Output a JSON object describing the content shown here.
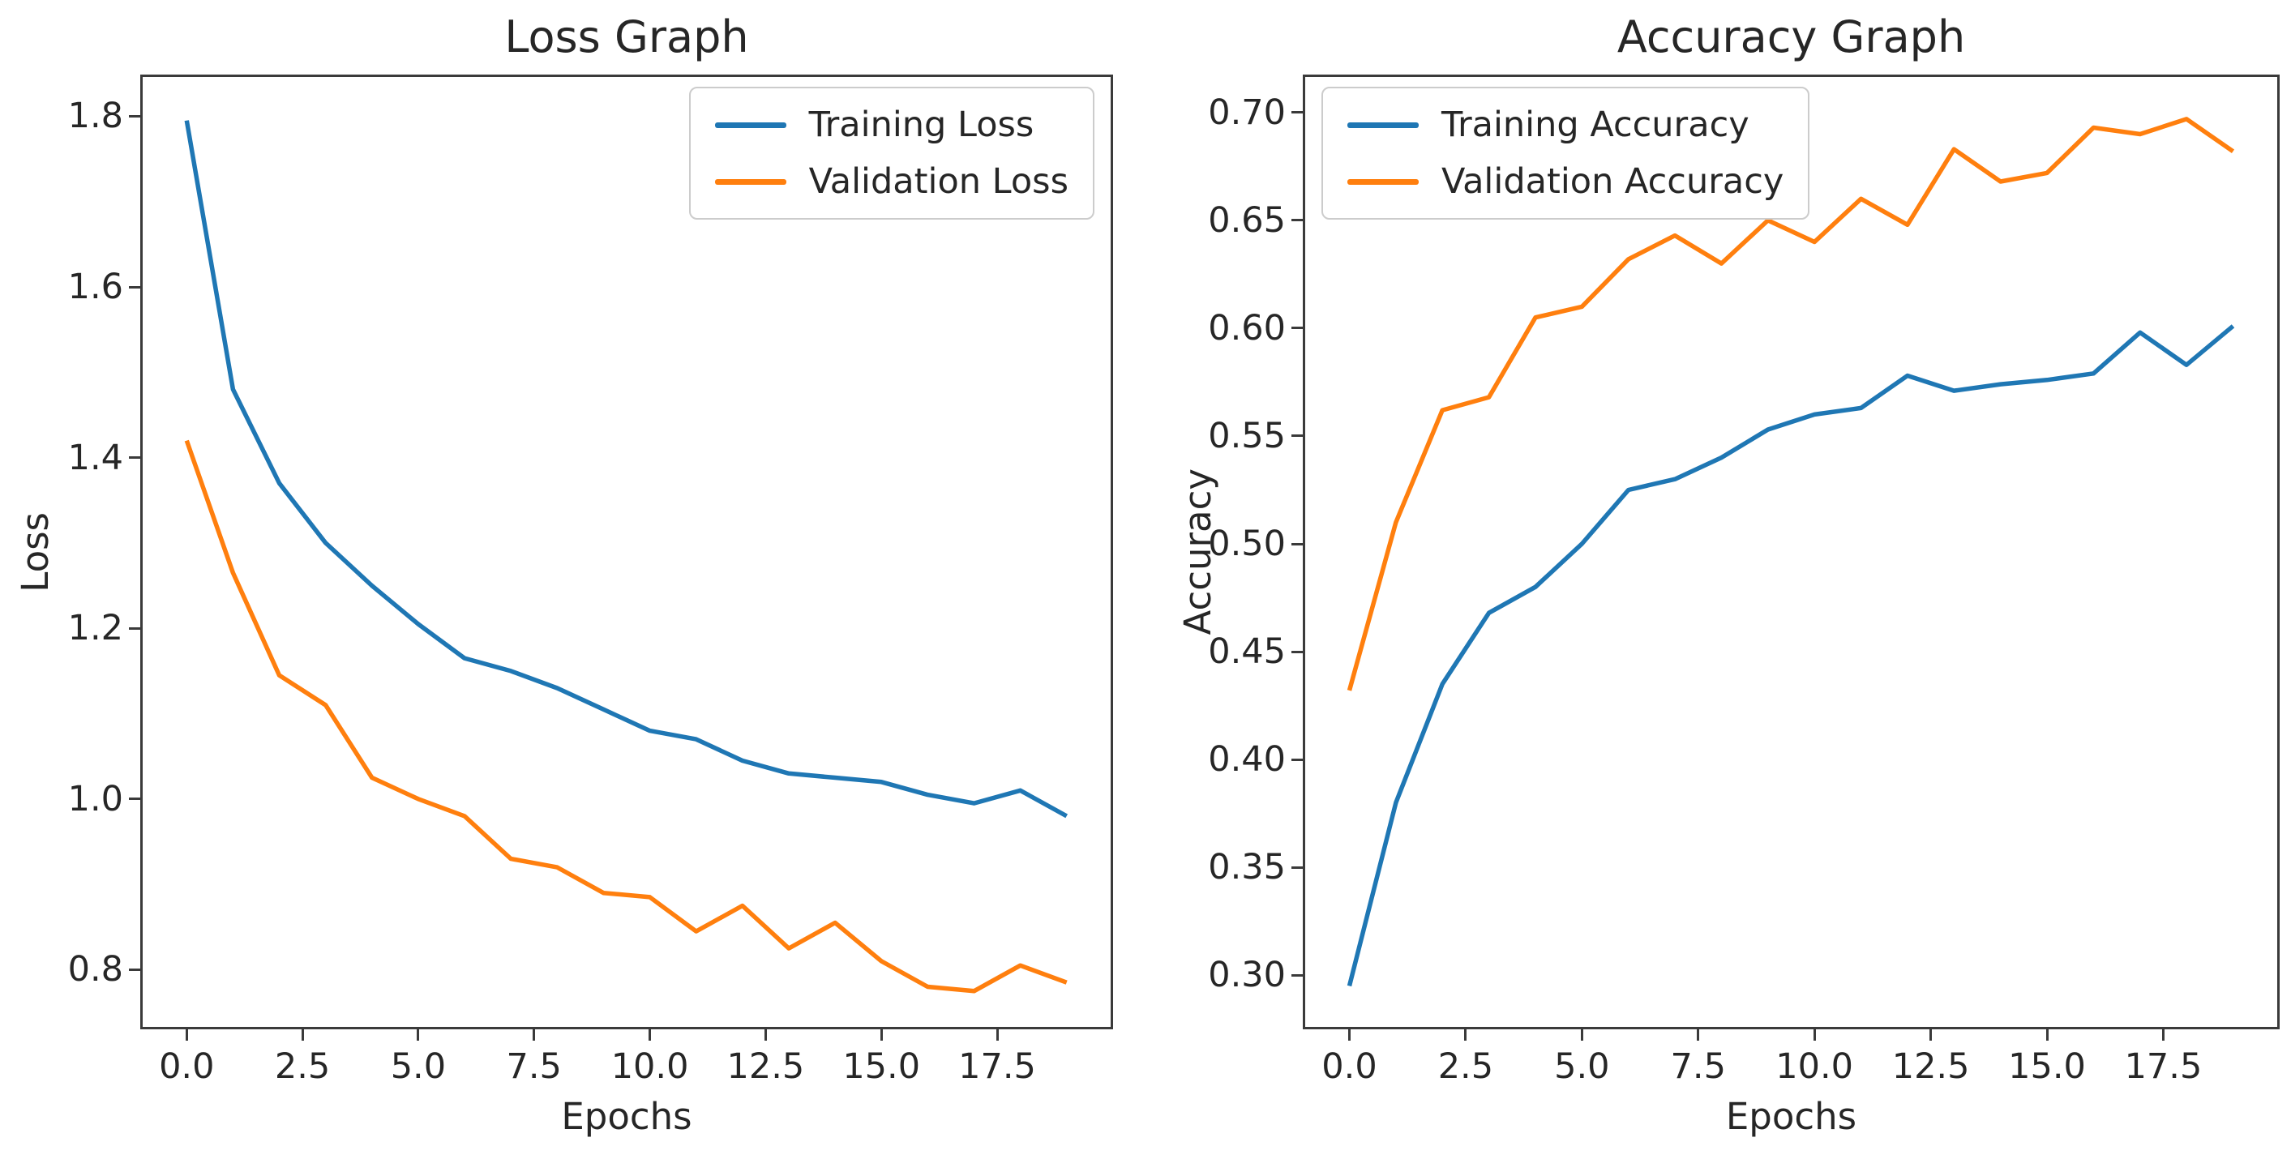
{
  "figure": {
    "background": "#ffffff",
    "text_color": "#262626",
    "axis_color": "#3a3a3a",
    "legend_border_color": "#cccccc"
  },
  "chart_data": [
    {
      "type": "line",
      "title": "Loss Graph",
      "xlabel": "Epochs",
      "ylabel": "Loss",
      "x": [
        0,
        1,
        2,
        3,
        4,
        5,
        6,
        7,
        8,
        9,
        10,
        11,
        12,
        13,
        14,
        15,
        16,
        17,
        18,
        19
      ],
      "series": [
        {
          "name": "Training Loss",
          "color": "#1f77b4",
          "values": [
            1.795,
            1.48,
            1.37,
            1.3,
            1.25,
            1.205,
            1.165,
            1.15,
            1.13,
            1.105,
            1.08,
            1.07,
            1.045,
            1.03,
            1.025,
            1.02,
            1.005,
            0.995,
            1.01,
            0.98
          ]
        },
        {
          "name": "Validation Loss",
          "color": "#ff7f0e",
          "values": [
            1.42,
            1.265,
            1.145,
            1.11,
            1.025,
            1.0,
            0.98,
            0.93,
            0.92,
            0.89,
            0.885,
            0.845,
            0.875,
            0.825,
            0.855,
            0.81,
            0.78,
            0.775,
            0.805,
            0.785
          ]
        }
      ],
      "xlim": [
        -0.95,
        19.95
      ],
      "ylim": [
        0.733,
        1.846
      ],
      "xticks": [
        0,
        2.5,
        5,
        7.5,
        10,
        12.5,
        15,
        17.5
      ],
      "xtick_labels": [
        "0.0",
        "2.5",
        "5.0",
        "7.5",
        "10.0",
        "12.5",
        "15.0",
        "17.5"
      ],
      "yticks": [
        0.8,
        1.0,
        1.2,
        1.4,
        1.6,
        1.8
      ],
      "ytick_labels": [
        "0.8",
        "1.0",
        "1.2",
        "1.4",
        "1.6",
        "1.8"
      ],
      "grid": false,
      "legend_position": "upper right"
    },
    {
      "type": "line",
      "title": "Accuracy Graph",
      "xlabel": "Epochs",
      "ylabel": "Accuracy",
      "x": [
        0,
        1,
        2,
        3,
        4,
        5,
        6,
        7,
        8,
        9,
        10,
        11,
        12,
        13,
        14,
        15,
        16,
        17,
        18,
        19
      ],
      "series": [
        {
          "name": "Training Accuracy",
          "color": "#1f77b4",
          "values": [
            0.295,
            0.38,
            0.435,
            0.468,
            0.48,
            0.5,
            0.525,
            0.53,
            0.54,
            0.553,
            0.56,
            0.563,
            0.578,
            0.571,
            0.574,
            0.576,
            0.579,
            0.598,
            0.583,
            0.601
          ]
        },
        {
          "name": "Validation Accuracy",
          "color": "#ff7f0e",
          "values": [
            0.432,
            0.51,
            0.562,
            0.568,
            0.605,
            0.61,
            0.632,
            0.643,
            0.63,
            0.65,
            0.64,
            0.66,
            0.648,
            0.683,
            0.668,
            0.672,
            0.693,
            0.69,
            0.697,
            0.682
          ]
        }
      ],
      "xlim": [
        -0.95,
        19.95
      ],
      "ylim": [
        0.276,
        0.7165
      ],
      "xticks": [
        0,
        2.5,
        5,
        7.5,
        10,
        12.5,
        15,
        17.5
      ],
      "xtick_labels": [
        "0.0",
        "2.5",
        "5.0",
        "7.5",
        "10.0",
        "12.5",
        "15.0",
        "17.5"
      ],
      "yticks": [
        0.3,
        0.35,
        0.4,
        0.45,
        0.5,
        0.55,
        0.6,
        0.65,
        0.7
      ],
      "ytick_labels": [
        "0.30",
        "0.35",
        "0.40",
        "0.45",
        "0.50",
        "0.55",
        "0.60",
        "0.65",
        "0.70"
      ],
      "grid": false,
      "legend_position": "upper left"
    }
  ]
}
